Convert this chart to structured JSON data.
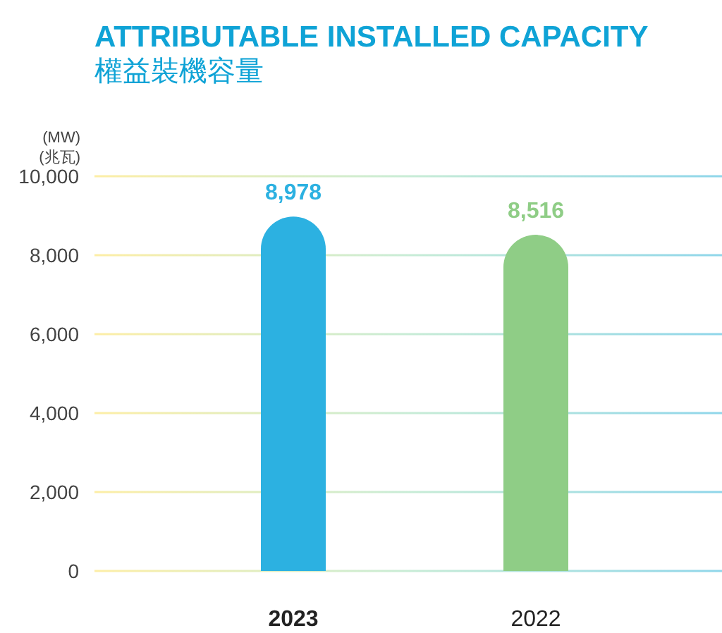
{
  "chart_data": {
    "type": "bar",
    "title": "ATTRIBUTABLE INSTALLED CAPACITY",
    "subtitle": "權益裝機容量",
    "ylabel": "(MW)\n(兆瓦)",
    "categories": [
      "2023",
      "2022"
    ],
    "values": [
      8978,
      8516
    ],
    "colors": [
      "#2cb1e1",
      "#8fcd86"
    ],
    "ylim": [
      0,
      10000
    ],
    "yticks": [
      {
        "value": 0,
        "label": "0"
      },
      {
        "value": 2000,
        "label": "2,000"
      },
      {
        "value": 4000,
        "label": "4,000"
      },
      {
        "value": 6000,
        "label": "6,000"
      },
      {
        "value": 8000,
        "label": "8,000"
      },
      {
        "value": 10000,
        "label": "10,000"
      }
    ],
    "value_labels": [
      "8,978",
      "8,516"
    ],
    "grid": "y"
  }
}
